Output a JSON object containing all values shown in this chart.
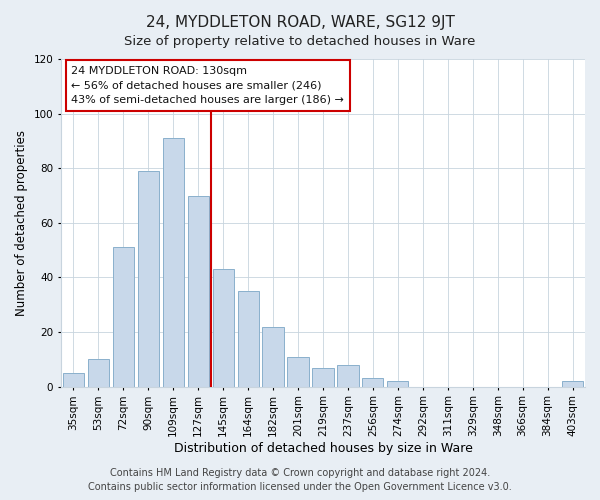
{
  "title": "24, MYDDLETON ROAD, WARE, SG12 9JT",
  "subtitle": "Size of property relative to detached houses in Ware",
  "xlabel": "Distribution of detached houses by size in Ware",
  "ylabel": "Number of detached properties",
  "bar_labels": [
    "35sqm",
    "53sqm",
    "72sqm",
    "90sqm",
    "109sqm",
    "127sqm",
    "145sqm",
    "164sqm",
    "182sqm",
    "201sqm",
    "219sqm",
    "237sqm",
    "256sqm",
    "274sqm",
    "292sqm",
    "311sqm",
    "329sqm",
    "348sqm",
    "366sqm",
    "384sqm",
    "403sqm"
  ],
  "bar_values": [
    5,
    10,
    51,
    79,
    91,
    70,
    43,
    35,
    22,
    11,
    7,
    8,
    3,
    2,
    0,
    0,
    0,
    0,
    0,
    0,
    2
  ],
  "bar_color": "#c8d8ea",
  "bar_edgecolor": "#8ab0cc",
  "vline_x": 5.5,
  "vline_color": "#cc0000",
  "annotation_text": "24 MYDDLETON ROAD: 130sqm\n← 56% of detached houses are smaller (246)\n43% of semi-detached houses are larger (186) →",
  "annotation_box_color": "#ffffff",
  "annotation_box_edgecolor": "#cc0000",
  "ylim": [
    0,
    120
  ],
  "yticks": [
    0,
    20,
    40,
    60,
    80,
    100,
    120
  ],
  "footer_text": "Contains HM Land Registry data © Crown copyright and database right 2024.\nContains public sector information licensed under the Open Government Licence v3.0.",
  "bg_color": "#e8eef4",
  "plot_bg_color": "#ffffff",
  "title_fontsize": 11,
  "subtitle_fontsize": 9.5,
  "xlabel_fontsize": 9,
  "ylabel_fontsize": 8.5,
  "footer_fontsize": 7,
  "tick_fontsize": 7.5,
  "annotation_fontsize": 8
}
